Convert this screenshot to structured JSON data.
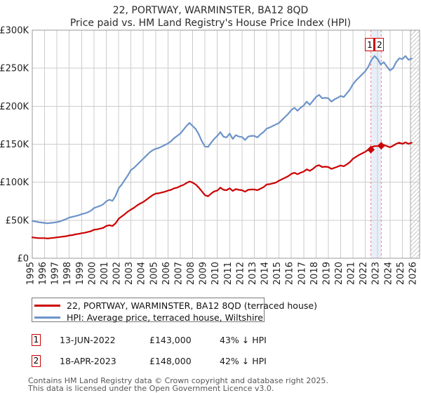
{
  "title": {
    "line1": "22, PORTWAY, WARMINSTER, BA12 8QD",
    "line2": "Price paid vs. HM Land Registry's House Price Index (HPI)"
  },
  "chart_data": {
    "type": "line",
    "x_start": 1995,
    "x_step": 0.25,
    "xlim": [
      1995,
      2026.4
    ],
    "ylim": [
      0,
      300
    ],
    "x_ticks": [
      1995,
      1996,
      1997,
      1998,
      1999,
      2000,
      2001,
      2002,
      2003,
      2004,
      2005,
      2006,
      2007,
      2008,
      2009,
      2010,
      2011,
      2012,
      2013,
      2014,
      2015,
      2016,
      2017,
      2018,
      2019,
      2020,
      2021,
      2022,
      2023,
      2024,
      2025,
      2026
    ],
    "y_ticks": [
      {
        "label": "£0",
        "value": 0
      },
      {
        "label": "£50K",
        "value": 50
      },
      {
        "label": "£100K",
        "value": 100
      },
      {
        "label": "£150K",
        "value": 150
      },
      {
        "label": "£200K",
        "value": 200
      },
      {
        "label": "£250K",
        "value": 250
      },
      {
        "label": "£300K",
        "value": 300
      }
    ],
    "y_unit": "£K",
    "grid": true,
    "future_shade_start": 2025.65,
    "series": [
      {
        "name": "22, PORTWAY, WARMINSTER, BA12 8QD (terraced house)",
        "color": "#cc0000",
        "values": [
          27.5,
          27,
          26.5,
          26.5,
          26.5,
          26,
          26.5,
          27,
          27.5,
          28,
          28.5,
          29,
          30,
          30.5,
          31.5,
          32,
          33,
          33.5,
          34.5,
          35.5,
          37.5,
          38,
          39,
          40,
          42.5,
          43.5,
          42.5,
          46,
          52,
          55,
          58,
          61.5,
          64,
          66.5,
          69.5,
          72,
          74,
          77,
          80,
          83,
          85,
          85.5,
          86.5,
          87.5,
          89,
          90,
          92,
          93,
          95,
          96.5,
          99,
          101,
          99.5,
          97,
          93,
          88,
          83,
          81.5,
          85,
          88,
          89,
          93,
          90,
          89.5,
          92,
          88.5,
          91,
          90,
          89.5,
          87.5,
          90,
          90.5,
          90.5,
          89.5,
          91.5,
          93.5,
          97,
          97.5,
          98.5,
          99.5,
          102,
          104,
          106,
          108,
          111,
          112.5,
          110.5,
          112.5,
          114,
          117,
          115,
          117.5,
          121,
          122.5,
          120,
          120.5,
          120,
          117.5,
          119,
          120.5,
          122,
          121,
          123.5,
          126.5,
          131,
          133.5,
          136,
          138,
          140,
          143,
          146,
          147.5,
          147.5,
          148,
          149,
          147.5,
          146,
          148,
          150.5,
          152,
          150.5,
          152.5,
          150.5,
          152
        ]
      },
      {
        "name": "HPI: Average price, terraced house, Wiltshire",
        "color": "#6d94c8",
        "values": [
          49,
          48.5,
          47.5,
          47,
          46.5,
          46,
          46.5,
          47,
          47.5,
          48.5,
          50,
          51.5,
          53.5,
          54.5,
          55.5,
          56.5,
          58,
          59,
          60.5,
          62.5,
          66,
          67.5,
          69,
          71,
          75,
          77,
          75.5,
          82,
          92,
          97,
          103,
          109,
          116,
          119,
          123,
          127,
          131,
          135,
          139,
          142,
          144,
          145,
          147,
          149,
          151,
          154,
          158,
          161,
          164,
          169,
          174,
          178,
          174,
          170,
          163,
          154,
          147,
          146.5,
          152,
          157,
          161,
          166,
          160,
          159,
          164,
          157,
          162,
          160,
          159.5,
          155.5,
          160,
          161,
          161,
          159,
          163,
          166,
          170.5,
          172,
          174,
          176,
          178,
          182,
          186,
          190,
          195,
          198,
          194,
          198,
          201,
          206,
          202,
          207,
          212,
          215,
          210.5,
          211,
          210.5,
          206,
          209,
          211,
          213.5,
          212,
          217,
          222,
          229,
          234,
          238,
          242,
          246,
          252,
          261,
          266,
          262,
          255,
          258,
          252,
          247,
          250,
          258,
          263,
          262,
          266,
          261,
          263
        ]
      }
    ],
    "sale_markers": [
      {
        "label": "1",
        "x": 2022.45,
        "value": 143
      },
      {
        "label": "2",
        "x": 2023.29,
        "value": 148
      }
    ]
  },
  "legend": {
    "items": [
      {
        "label": "22, PORTWAY, WARMINSTER, BA12 8QD (terraced house)",
        "color": "#cc0000"
      },
      {
        "label": "HPI: Average price, terraced house, Wiltshire",
        "color": "#6d94c8"
      }
    ]
  },
  "transactions": [
    {
      "num": "1",
      "date": "13-JUN-2022",
      "price": "£143,000",
      "hpi_diff": "43% ↓ HPI"
    },
    {
      "num": "2",
      "date": "18-APR-2023",
      "price": "£148,000",
      "hpi_diff": "42% ↓ HPI"
    }
  ],
  "footer": {
    "line1": "Contains HM Land Registry data © Crown copyright and database right 2025.",
    "line2": "This data is licensed under the Open Government Licence v3.0."
  },
  "colors": {
    "red": "#cc0000",
    "blue": "#6d94c8",
    "grid": "#cccccc",
    "border": "#9a9a9a",
    "dashed": "#f08080",
    "band": "#e9eff9",
    "hatch": "#c6c6c6",
    "axis_text": "#222222"
  }
}
